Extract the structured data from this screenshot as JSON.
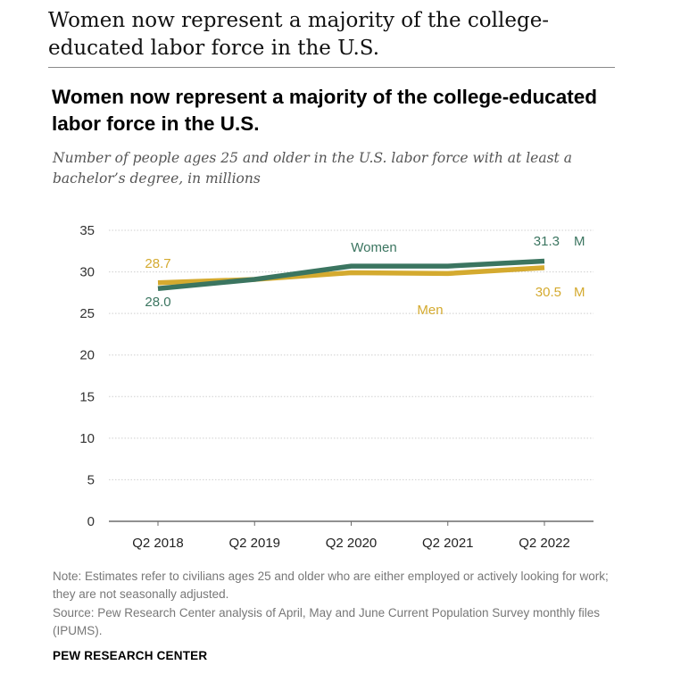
{
  "page": {
    "heading": "Women now represent a majority of the college-educated labor force in the U.S."
  },
  "chart_data": {
    "type": "line",
    "title": "Women now represent a majority of the college-educated labor force in the U.S.",
    "subtitle": "Number of people ages 25 and older in the U.S. labor force with at least a bachelor’s degree, in millions",
    "xlabel": "",
    "ylabel": "",
    "categories": [
      "Q2 2018",
      "Q2 2019",
      "Q2 2020",
      "Q2 2021",
      "Q2 2022"
    ],
    "ylim": [
      0,
      35
    ],
    "yticks": [
      "0",
      "5",
      "10",
      "15",
      "20",
      "25",
      "30",
      "35"
    ],
    "grid": true,
    "series": [
      {
        "name": "Women",
        "color": "#3b7560",
        "values": [
          28.0,
          29.1,
          30.7,
          30.7,
          31.3
        ],
        "labels": {
          "start": "28.0",
          "end_value": "31.3",
          "end_unit": "M"
        }
      },
      {
        "name": "Men",
        "color": "#d4aa2f",
        "values": [
          28.7,
          29.1,
          29.9,
          29.8,
          30.5
        ],
        "labels": {
          "start": "28.7",
          "end_value": "30.5",
          "end_unit": "M"
        }
      }
    ]
  },
  "footer": {
    "note": "Note: Estimates refer to civilians ages 25 and older who are either employed or actively looking for work; they are not seasonally adjusted.",
    "source": "Source: Pew Research Center analysis of April, May and June Current Population Survey monthly files (IPUMS).",
    "org": "PEW RESEARCH CENTER"
  }
}
